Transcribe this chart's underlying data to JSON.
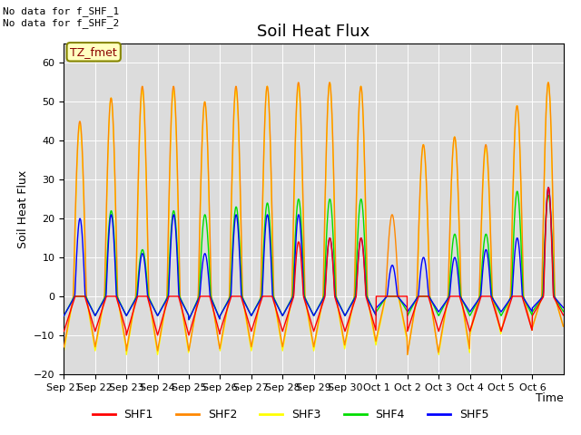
{
  "title": "Soil Heat Flux",
  "ylabel": "Soil Heat Flux",
  "xlabel": "Time",
  "ylim": [
    -20,
    65
  ],
  "annotation_text": "No data for f_SHF_1\nNo data for f_SHF_2",
  "legend_label_text": "TZ_fmet",
  "series_colors": {
    "SHF1": "#ff0000",
    "SHF2": "#ff8800",
    "SHF3": "#ffff00",
    "SHF4": "#00dd00",
    "SHF5": "#0000ff"
  },
  "background_color": "#dcdcdc",
  "x_tick_labels": [
    "Sep 21",
    "Sep 22",
    "Sep 23",
    "Sep 24",
    "Sep 25",
    "Sep 26",
    "Sep 27",
    "Sep 28",
    "Sep 29",
    "Sep 30",
    "Oct 1",
    "Oct 2",
    "Oct 3",
    "Oct 4",
    "Oct 5",
    "Oct 6"
  ],
  "num_days": 16,
  "points_per_day": 96,
  "title_fontsize": 13,
  "axis_fontsize": 9,
  "tick_fontsize": 8,
  "shf2_peaks": [
    45,
    51,
    54,
    54,
    50,
    54,
    54,
    55,
    55,
    54,
    21,
    39,
    41,
    39,
    49,
    55
  ],
  "shf3_peaks": [
    44,
    51,
    53,
    53,
    50,
    53,
    54,
    54,
    55,
    54,
    0,
    39,
    41,
    38,
    49,
    55
  ],
  "shf4_peaks": [
    0,
    22,
    12,
    22,
    21,
    23,
    24,
    25,
    25,
    25,
    0,
    0,
    16,
    16,
    27,
    26
  ],
  "shf5_peaks": [
    20,
    21,
    11,
    21,
    11,
    21,
    21,
    21,
    15,
    15,
    8,
    10,
    10,
    12,
    15,
    28
  ],
  "shf1_peaks": [
    0,
    0,
    0,
    0,
    0,
    0,
    0,
    14,
    15,
    15,
    0,
    0,
    0,
    0,
    0,
    28
  ],
  "shf2_nights": [
    -13,
    -13,
    -14,
    -14,
    -14,
    -13,
    -13,
    -13,
    -13,
    -12,
    -11,
    -15,
    -14,
    -9,
    -9,
    -8
  ],
  "shf3_nights": [
    -14,
    -14,
    -15,
    -15,
    -14,
    -14,
    -14,
    -14,
    -14,
    -13,
    -12,
    -15,
    -15,
    -10,
    -9,
    -8
  ],
  "shf4_nights": [
    -5,
    -5,
    -5,
    -5,
    -6,
    -5,
    -5,
    -5,
    -5,
    -5,
    -4,
    -5,
    -5,
    -5,
    -5,
    -4
  ],
  "shf5_nights": [
    -5,
    -5,
    -5,
    -5,
    -6,
    -5,
    -5,
    -5,
    -5,
    -5,
    -3,
    -4,
    -4,
    -4,
    -4,
    -3
  ],
  "shf1_nights": [
    -9,
    -9,
    -10,
    -10,
    -10,
    -9,
    -9,
    -9,
    -9,
    -9,
    0,
    -9,
    -9,
    -9,
    -9,
    -5
  ]
}
